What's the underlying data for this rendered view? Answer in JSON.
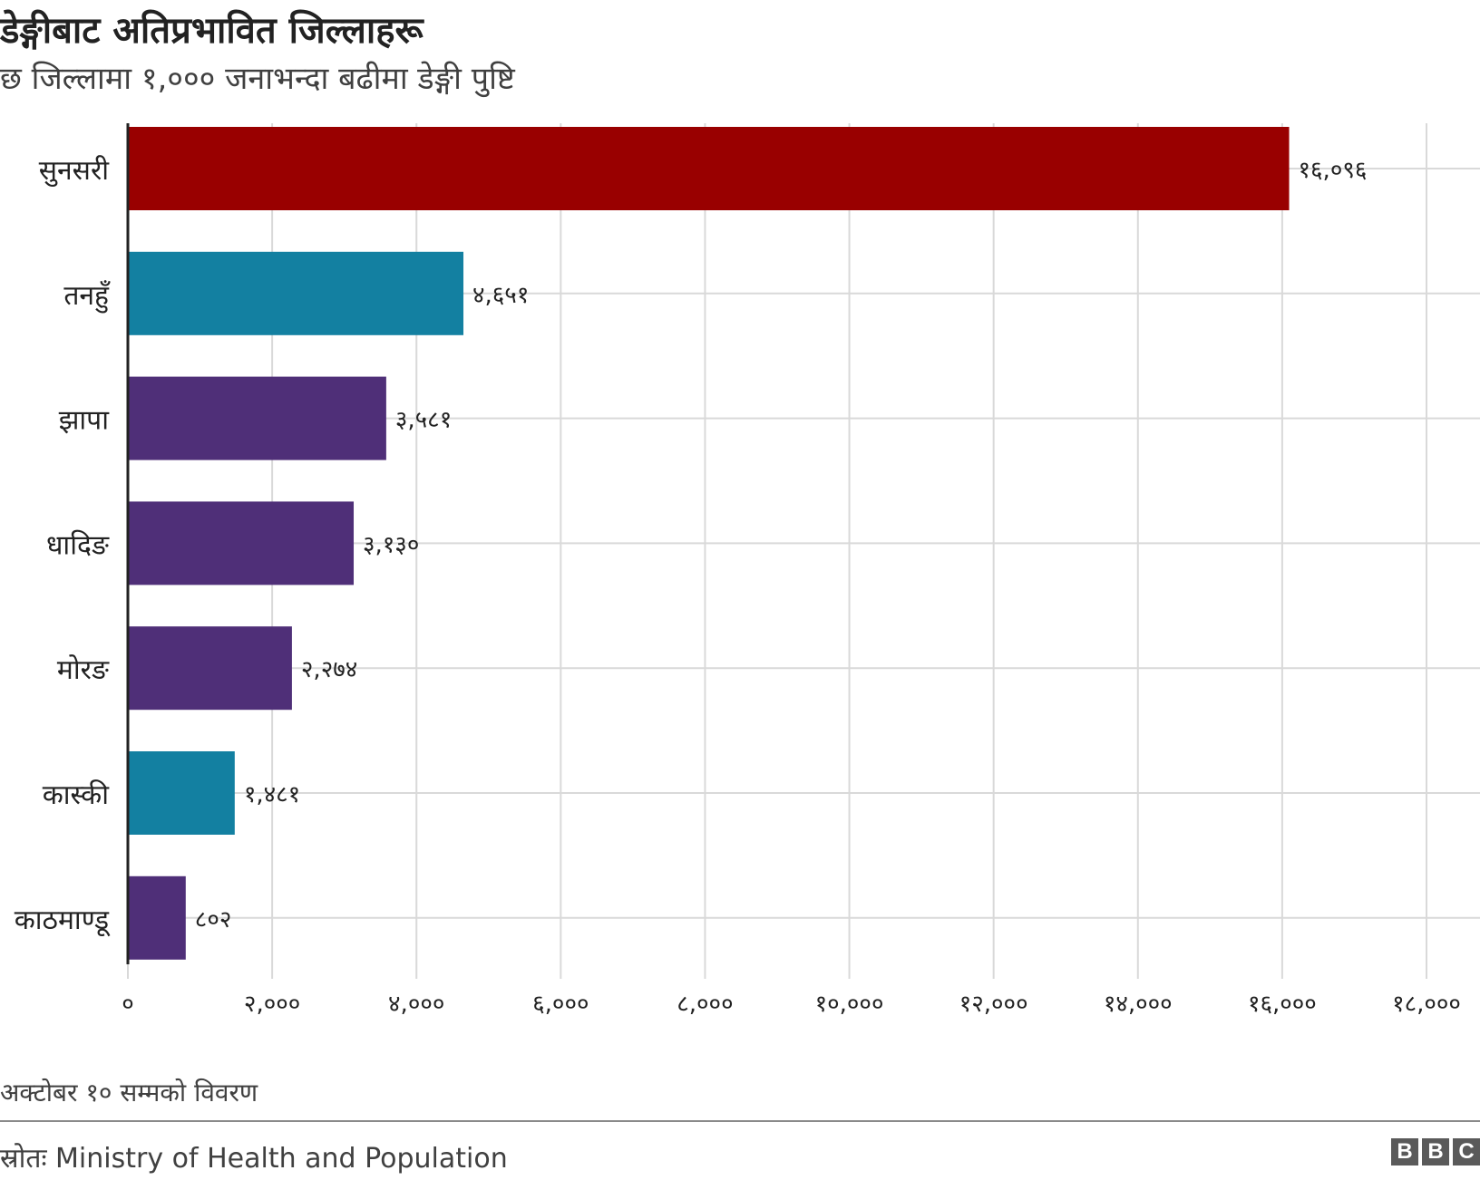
{
  "header": {
    "title": "डेङ्गीबाट अतिप्रभावित जिल्लाहरू",
    "subtitle": "छ जिल्लामा १,००० जनाभन्दा बढीमा डेङ्गी पुष्टि"
  },
  "chart_data": {
    "type": "bar",
    "orientation": "horizontal",
    "title": "डेङ्गीबाट अतिप्रभावित जिल्लाहरू",
    "subtitle": "छ जिल्लामा १,००० जनाभन्दा बढीमा डेङ्गी पुष्टि",
    "xlabel": "",
    "ylabel": "",
    "xlim": [
      0,
      18000
    ],
    "grid": true,
    "categories": [
      "सुनसरी",
      "तनहुँ",
      "झापा",
      "धादिङ",
      "मोरङ",
      "कास्की",
      "काठमाण्डू"
    ],
    "values": [
      16096,
      4651,
      3581,
      3130,
      2274,
      1481,
      802
    ],
    "value_labels": [
      "१६,०९६",
      "४,६५१",
      "३,५८१",
      "३,१३०",
      "२,२७४",
      "१,४८१",
      "८०२"
    ],
    "bar_colors": [
      "#990000",
      "#1380a1",
      "#4f2f78",
      "#4f2f78",
      "#4f2f78",
      "#1380a1",
      "#4f2f78"
    ],
    "ticks": [
      0,
      2000,
      4000,
      6000,
      8000,
      10000,
      12000,
      14000,
      16000,
      18000
    ],
    "tick_labels": [
      "०",
      "२,०००",
      "४,०००",
      "६,०००",
      "८,०००",
      "१०,०००",
      "१२,०००",
      "१४,०००",
      "१६,०००",
      "१८,०००"
    ]
  },
  "footer": {
    "note": "अक्टोबर १० सम्मको विवरण",
    "source": "स्रोतः Ministry of Health and Population",
    "logo_letters": [
      "B",
      "B",
      "C"
    ]
  }
}
